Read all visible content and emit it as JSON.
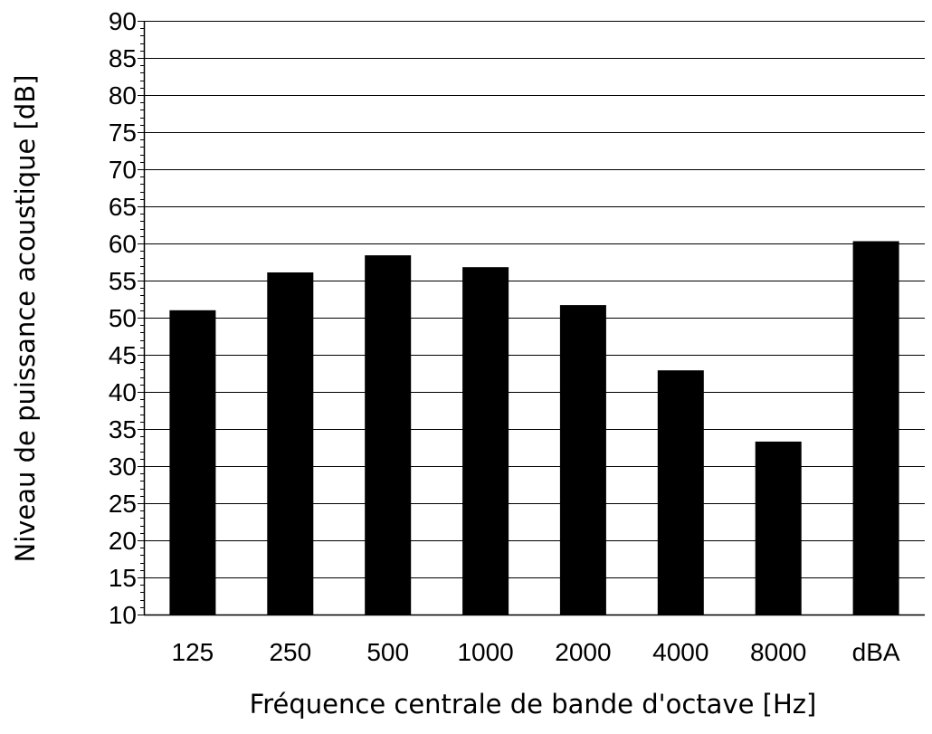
{
  "chart_data": {
    "type": "bar",
    "title": "",
    "xlabel": "Fréquence centrale de bande d'octave [Hz]",
    "ylabel": "Niveau de puissance acoustique [dB]",
    "categories": [
      "125",
      "250",
      "500",
      "1000",
      "2000",
      "4000",
      "8000",
      "dBA"
    ],
    "values": [
      51,
      56.1,
      58.4,
      56.8,
      51.7,
      42.9,
      33.3,
      60.3
    ],
    "ylim": [
      10,
      90
    ],
    "yticks": [
      10,
      15,
      20,
      25,
      30,
      35,
      40,
      45,
      50,
      55,
      60,
      65,
      70,
      75,
      80,
      85,
      90
    ],
    "ytick_labels": [
      "10",
      "15",
      "20",
      "25",
      "30",
      "35",
      "40",
      "45",
      "50",
      "55",
      "60",
      "65",
      "70",
      "75",
      "80",
      "85",
      "90"
    ],
    "minor_tick_step": 1,
    "grid": true,
    "legend": "none",
    "bar_color": "#000000",
    "grid_color": "#000000"
  }
}
